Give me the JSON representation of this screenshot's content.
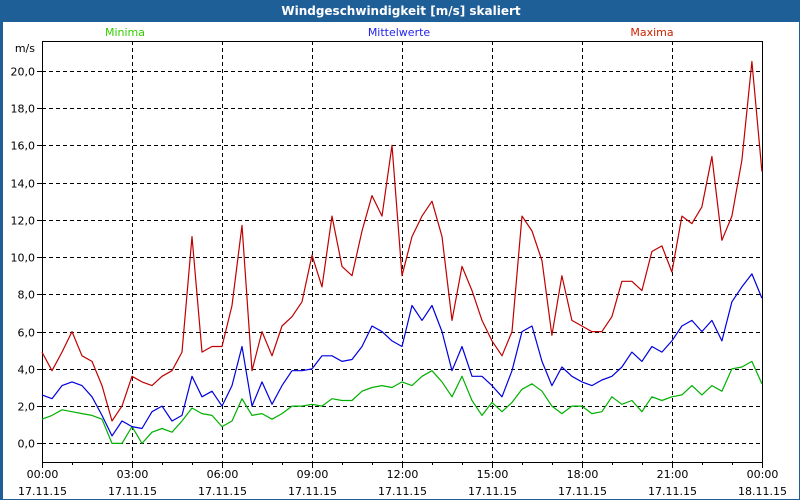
{
  "window": {
    "title": "Windgeschwindigkeit [m/s] skaliert"
  },
  "chart_data": {
    "type": "line",
    "title": "Windgeschwindigkeit [m/s] skaliert",
    "ylabel": "m/s",
    "xlabel": "",
    "ylim": [
      -1.0,
      21.6
    ],
    "xlim_hours": [
      0,
      24
    ],
    "grid": true,
    "y_ticks": [
      {
        "value": 0,
        "label": "0,0"
      },
      {
        "value": 2,
        "label": "2,0"
      },
      {
        "value": 4,
        "label": "4,0"
      },
      {
        "value": 6,
        "label": "6,0"
      },
      {
        "value": 8,
        "label": "8,0"
      },
      {
        "value": 10,
        "label": "10,0"
      },
      {
        "value": 12,
        "label": "12,0"
      },
      {
        "value": 14,
        "label": "14,0"
      },
      {
        "value": 16,
        "label": "16,0"
      },
      {
        "value": 18,
        "label": "18,0"
      },
      {
        "value": 20,
        "label": "20,0"
      }
    ],
    "x_ticks": [
      {
        "hour": 0,
        "time": "00:00",
        "date": "17.11.15"
      },
      {
        "hour": 3,
        "time": "03:00",
        "date": "17.11.15"
      },
      {
        "hour": 6,
        "time": "06:00",
        "date": "17.11.15"
      },
      {
        "hour": 9,
        "time": "09:00",
        "date": "17.11.15"
      },
      {
        "hour": 12,
        "time": "12:00",
        "date": "17.11.15"
      },
      {
        "hour": 15,
        "time": "15:00",
        "date": "17.11.15"
      },
      {
        "hour": 18,
        "time": "18:00",
        "date": "17.11.15"
      },
      {
        "hour": 21,
        "time": "21:00",
        "date": "17.11.15"
      },
      {
        "hour": 24,
        "time": "00:00",
        "date": "18.11.15"
      }
    ],
    "x_start_hours": 0,
    "x_step_hours": 0.3333,
    "series": [
      {
        "name": "Minima",
        "color": "#00b000",
        "legend_color": "#33cc00",
        "legend_pos": "top-left",
        "values": [
          1.3,
          1.5,
          1.8,
          1.7,
          1.6,
          1.5,
          1.3,
          0,
          0,
          0.9,
          0,
          0.6,
          0.8,
          0.6,
          1.2,
          1.9,
          1.6,
          1.5,
          0.9,
          1.2,
          2.4,
          1.5,
          1.6,
          1.3,
          1.6,
          2.0,
          2.0,
          2.1,
          2.0,
          2.4,
          2.3,
          2.3,
          2.8,
          3.0,
          3.1,
          3.0,
          3.3,
          3.1,
          3.6,
          3.9,
          3.3,
          2.5,
          3.6,
          2.3,
          1.5,
          2.2,
          1.7,
          2.2,
          2.9,
          3.2,
          2.8,
          2.0,
          1.6,
          2.0,
          2.0,
          1.6,
          1.7,
          2.5,
          2.1,
          2.3,
          1.7,
          2.5,
          2.3,
          2.5,
          2.6,
          3.1,
          2.6,
          3.1,
          2.8,
          4.0,
          4.1,
          4.4,
          3.2
        ]
      },
      {
        "name": "Mittelwerte",
        "color": "#0000e0",
        "legend_color": "#2222ee",
        "legend_pos": "top-center",
        "values": [
          2.6,
          2.4,
          3.1,
          3.3,
          3.1,
          2.5,
          1.5,
          0.4,
          1.2,
          0.9,
          0.8,
          1.7,
          2.0,
          1.2,
          1.5,
          3.6,
          2.5,
          2.8,
          2.0,
          3.1,
          5.2,
          2.0,
          3.3,
          2.1,
          3.1,
          3.9,
          3.9,
          4.0,
          4.7,
          4.7,
          4.4,
          4.5,
          5.2,
          6.3,
          6.0,
          5.5,
          5.2,
          7.4,
          6.6,
          7.4,
          6.0,
          3.9,
          5.2,
          3.6,
          3.6,
          3.1,
          2.5,
          3.9,
          6.0,
          6.3,
          4.4,
          3.1,
          4.1,
          3.6,
          3.3,
          3.1,
          3.4,
          3.6,
          4.1,
          4.9,
          4.4,
          5.2,
          4.9,
          5.5,
          6.3,
          6.6,
          6.0,
          6.6,
          5.5,
          7.6,
          8.4,
          9.1,
          7.8
        ]
      },
      {
        "name": "Maxima",
        "color": "#c00000",
        "legend_color": "#cc2200",
        "legend_pos": "top-right",
        "values": [
          4.9,
          3.9,
          4.9,
          6.0,
          4.7,
          4.4,
          3.1,
          1.2,
          2.0,
          3.6,
          3.3,
          3.1,
          3.6,
          3.9,
          4.9,
          11.1,
          4.9,
          5.2,
          5.2,
          7.4,
          11.7,
          3.9,
          6.0,
          4.7,
          6.3,
          6.8,
          7.6,
          10.1,
          8.4,
          12.2,
          9.5,
          9.0,
          11.4,
          13.3,
          12.2,
          16.0,
          9.0,
          11.1,
          12.2,
          13.0,
          11.1,
          6.6,
          9.5,
          8.2,
          6.6,
          5.5,
          4.7,
          6.0,
          12.2,
          11.4,
          9.8,
          5.8,
          9.0,
          6.6,
          6.3,
          6.0,
          6.0,
          6.8,
          8.7,
          8.7,
          8.2,
          10.3,
          10.6,
          9.2,
          12.2,
          11.8,
          12.7,
          15.4,
          10.9,
          12.2,
          15.2,
          20.5,
          14.6
        ]
      }
    ]
  }
}
